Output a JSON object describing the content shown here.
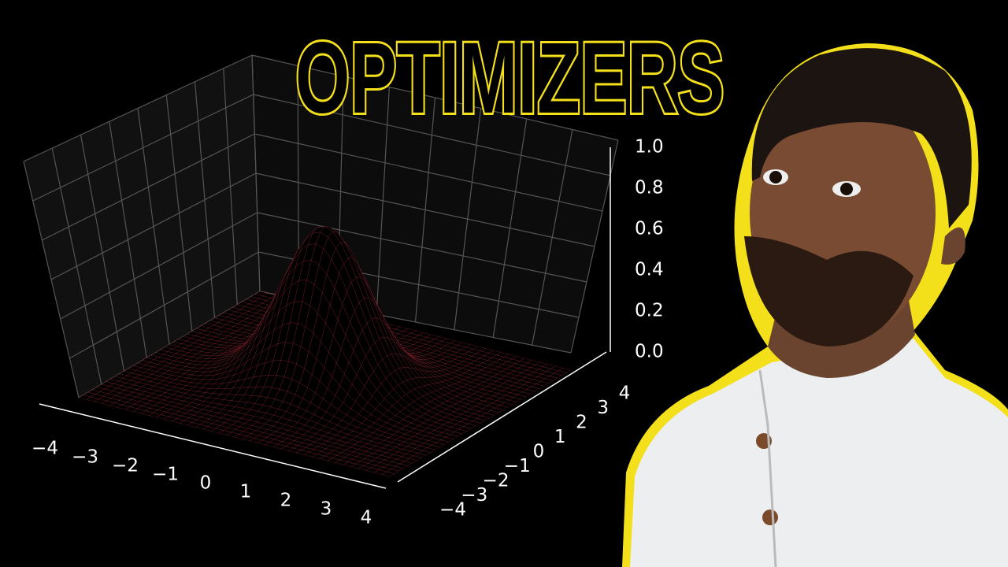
{
  "title": "OPTIMIZERS",
  "plot": {
    "x_ticks": [
      "−4",
      "−3",
      "−2",
      "−1",
      "0",
      "1",
      "2",
      "3",
      "4"
    ],
    "y_ticks": [
      "−4",
      "−3",
      "−2",
      "−1",
      "0",
      "1",
      "2",
      "3",
      "4"
    ],
    "z_ticks": [
      "0.0",
      "0.2",
      "0.4",
      "0.6",
      "0.8",
      "1.0"
    ]
  }
}
